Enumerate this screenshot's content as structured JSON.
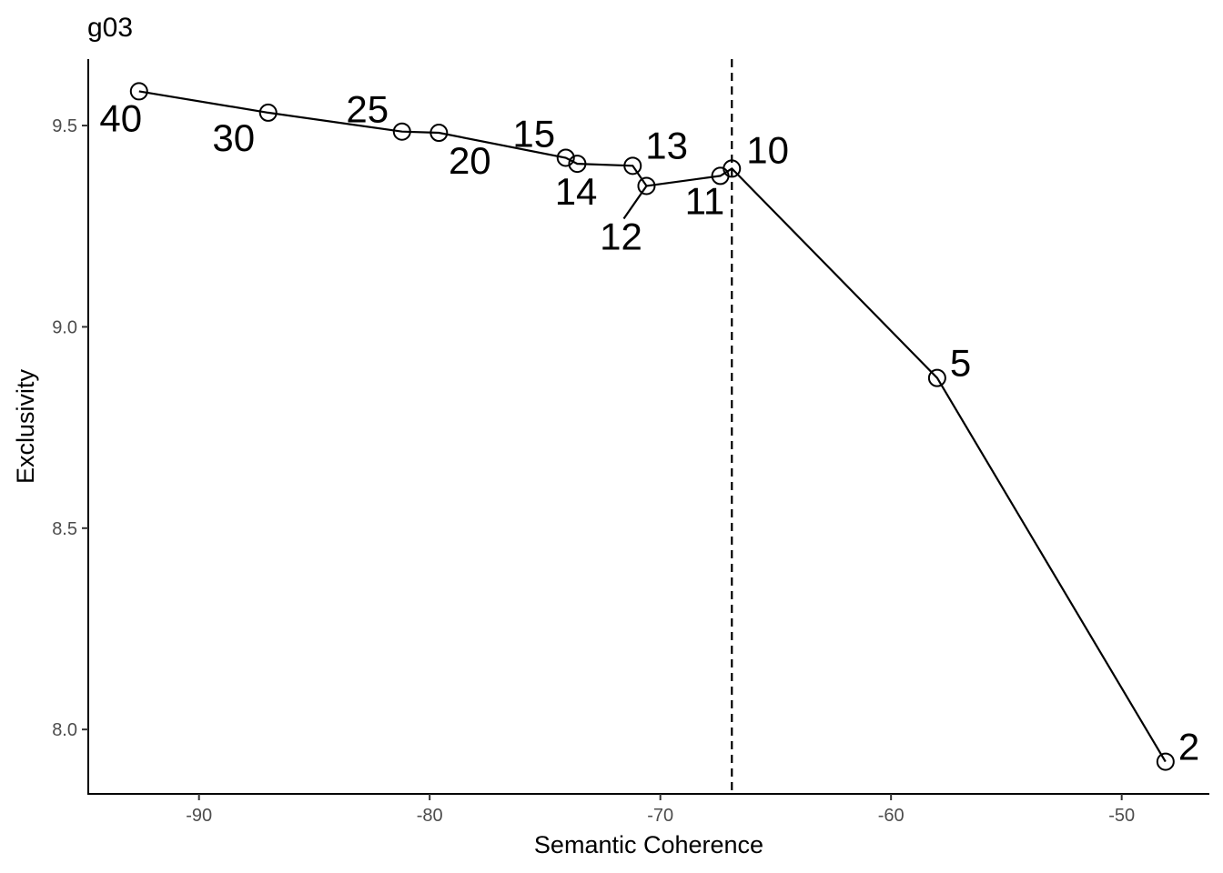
{
  "chart_data": {
    "type": "line",
    "title": "g03",
    "xlabel": "Semantic Coherence",
    "ylabel": "Exclusivity",
    "xlim": [
      -94.8,
      -46.2
    ],
    "ylim": [
      7.84,
      9.665
    ],
    "xticks": [
      -90,
      -80,
      -70,
      -60,
      -50
    ],
    "yticks": [
      8.0,
      8.5,
      9.0,
      9.5
    ],
    "xtick_labels": [
      "-90",
      "-80",
      "-70",
      "-60",
      "-50"
    ],
    "ytick_labels": [
      "8.0",
      "8.5",
      "9.0",
      "9.5"
    ],
    "grid": false,
    "reference_line": {
      "axis": "x",
      "value": -66.9,
      "style": "dashed"
    },
    "points": [
      {
        "label": "40",
        "x": -92.6,
        "y": 9.585
      },
      {
        "label": "30",
        "x": -87.0,
        "y": 9.532
      },
      {
        "label": "25",
        "x": -81.2,
        "y": 9.485
      },
      {
        "label": "20",
        "x": -79.6,
        "y": 9.482
      },
      {
        "label": "15",
        "x": -74.1,
        "y": 9.42
      },
      {
        "label": "14",
        "x": -73.6,
        "y": 9.405
      },
      {
        "label": "13",
        "x": -71.2,
        "y": 9.4
      },
      {
        "label": "12",
        "x": -70.6,
        "y": 9.35
      },
      {
        "label": "11",
        "x": -67.4,
        "y": 9.375
      },
      {
        "label": "10",
        "x": -66.9,
        "y": 9.393
      },
      {
        "label": "5",
        "x": -58.0,
        "y": 8.873
      },
      {
        "label": "2",
        "x": -48.1,
        "y": 7.92
      }
    ]
  }
}
